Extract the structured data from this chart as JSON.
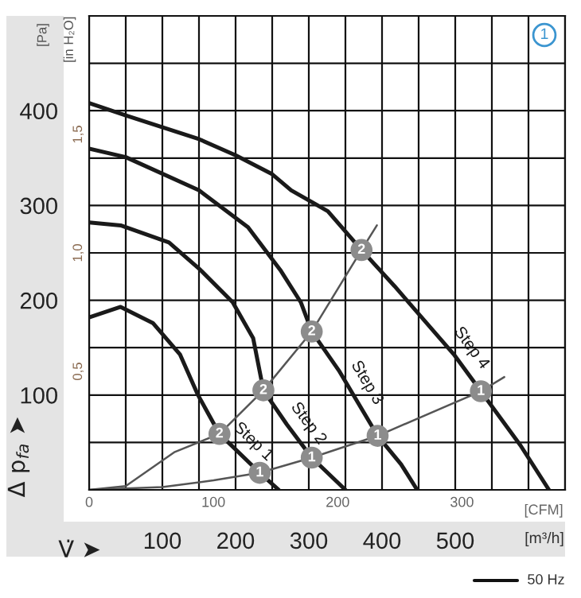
{
  "chart_data": {
    "type": "line",
    "xlabel": "V̇ ➤",
    "ylabel": "Δ p$_{fa}$ ➤",
    "y2label": "[in H₂O]",
    "x2label": "[CFM]",
    "xlim": [
      0,
      650
    ],
    "xticks": [
      100,
      200,
      300,
      400,
      500
    ],
    "ylim": [
      0,
      500
    ],
    "yticks": [
      100,
      200,
      300,
      400
    ],
    "x2lim": [
      0,
      383
    ],
    "x2ticks": [
      0,
      100,
      200,
      300
    ],
    "y2lim": [
      0,
      2.0
    ],
    "y2ticks": [
      {
        "value": 0.5,
        "label": "0,5"
      },
      {
        "value": 1.0,
        "label": "1,0"
      },
      {
        "value": 1.5,
        "label": "1,5"
      }
    ],
    "grid": true,
    "marker": "none",
    "line_style": "solid",
    "series": [
      {
        "name": "Step 4",
        "color": "#1a1a1a",
        "x": [
          0,
          50,
          150,
          200,
          250,
          276,
          326,
          372,
          417,
          498,
          535,
          589,
          628
        ],
        "values": [
          408,
          395,
          370,
          353,
          333,
          316,
          294,
          253,
          215,
          143,
          104,
          47,
          0
        ]
      },
      {
        "name": "Step 3",
        "color": "#1a1a1a",
        "x": [
          0,
          50,
          150,
          217,
          261,
          289,
          304,
          341,
          394,
          426,
          448
        ],
        "values": [
          360,
          351,
          316,
          277,
          232,
          198,
          167,
          126,
          57,
          27,
          0
        ]
      },
      {
        "name": "Step 2",
        "color": "#1a1a1a",
        "x": [
          0,
          43,
          109,
          152,
          196,
          224,
          238,
          270,
          304,
          350
        ],
        "values": [
          282,
          279,
          261,
          232,
          198,
          160,
          105,
          69,
          34,
          0
        ]
      },
      {
        "name": "Step 1",
        "color": "#1a1a1a",
        "x": [
          0,
          43,
          87,
          124,
          148,
          178,
          233,
          259
        ],
        "values": [
          182,
          193,
          176,
          143,
          101,
          59,
          18,
          0
        ]
      },
      {
        "color": "#555555",
        "x": [
          0,
          50,
          117,
          178,
          238,
          304,
          372,
          393
        ],
        "values": [
          0,
          4,
          40,
          59,
          105,
          167,
          253,
          279
        ]
      },
      {
        "color": "#555555",
        "x": [
          0,
          100,
          170,
          233,
          304,
          394,
          535,
          567
        ],
        "values": [
          0,
          3,
          10,
          18,
          34,
          57,
          104,
          119
        ]
      }
    ],
    "annotations": [
      "[Pa]",
      "[m³/h]",
      "1",
      "50 Hz",
      {
        "text": "2",
        "x": 178,
        "y": 59
      },
      {
        "text": "2",
        "x": 238,
        "y": 105
      },
      {
        "text": "2",
        "x": 304,
        "y": 167
      },
      {
        "text": "2",
        "x": 372,
        "y": 253
      },
      {
        "text": "1",
        "x": 233,
        "y": 18
      },
      {
        "text": "1",
        "x": 304,
        "y": 34
      },
      {
        "text": "1",
        "x": 394,
        "y": 57
      },
      {
        "text": "1",
        "x": 535,
        "y": 104
      }
    ]
  }
}
